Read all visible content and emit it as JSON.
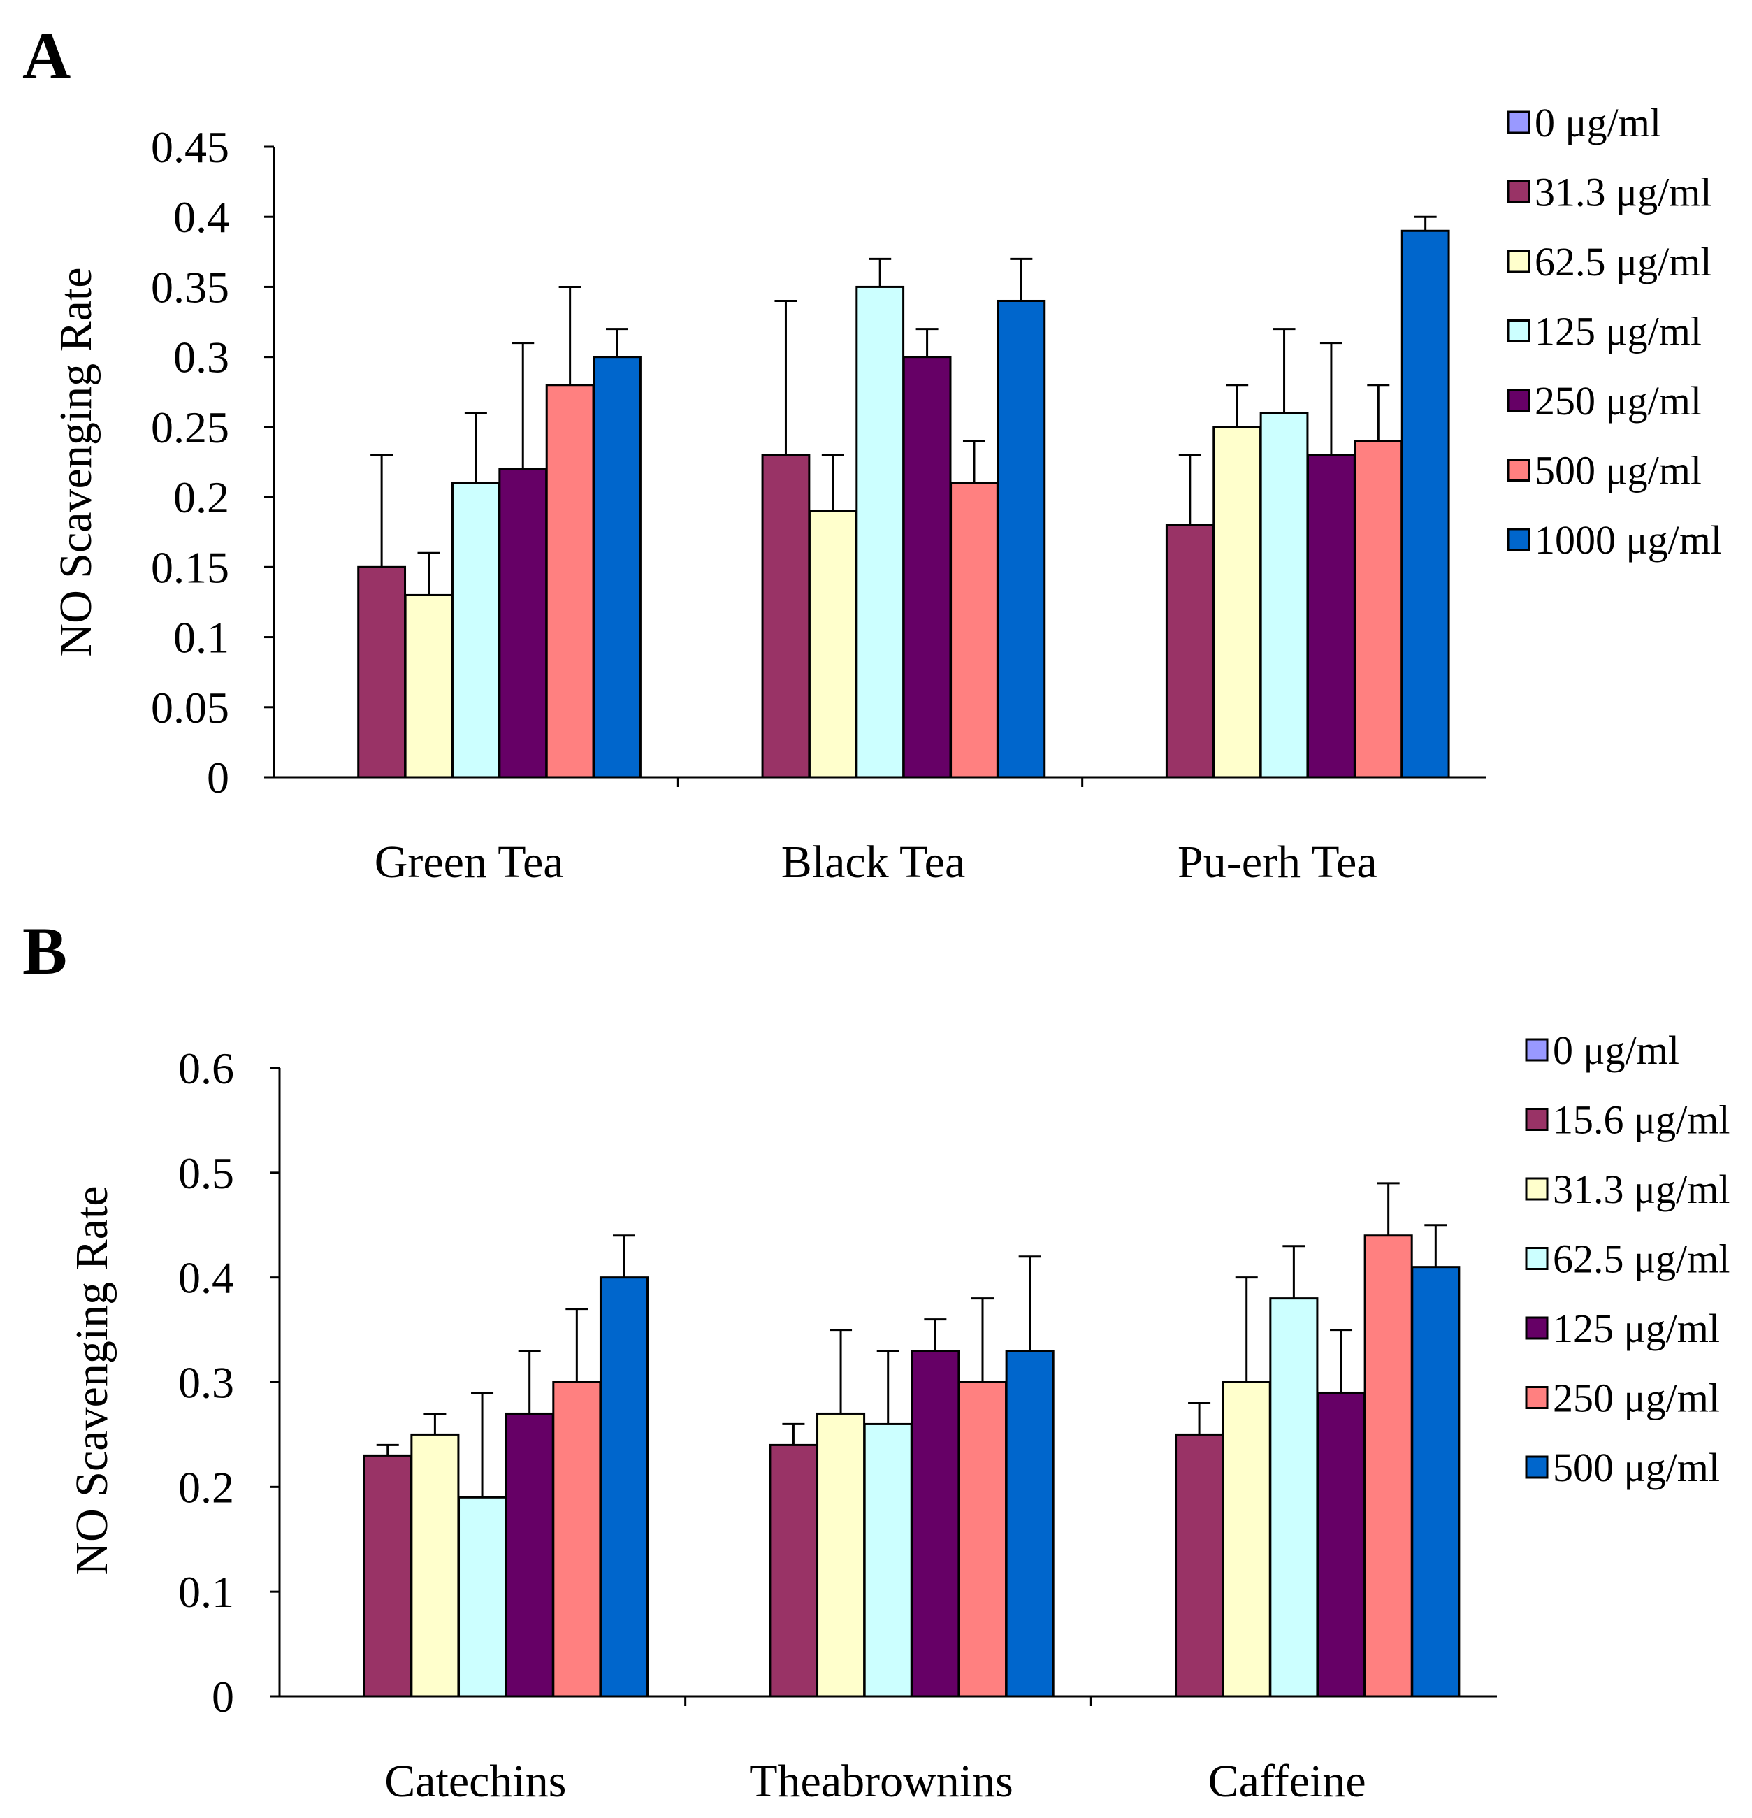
{
  "chart_data": [
    {
      "panel": "A",
      "type": "bar",
      "title": "",
      "xlabel": "",
      "ylabel": "NO Scavenging Rate",
      "ylim": [
        0,
        0.45
      ],
      "yticks": [
        "0",
        "0.05",
        "0.1",
        "0.15",
        "0.2",
        "0.25",
        "0.3",
        "0.35",
        "0.4",
        "0.45"
      ],
      "categories": [
        "Green Tea",
        "Black Tea",
        "Pu-erh Tea"
      ],
      "legend_position": "right",
      "series": [
        {
          "name": "0 μg/ml",
          "color": "#9999ff",
          "values": [
            0,
            0,
            0
          ],
          "errors": [
            0,
            0,
            0
          ]
        },
        {
          "name": "31.3 μg/ml",
          "color": "#993366",
          "values": [
            0.15,
            0.23,
            0.18
          ],
          "errors": [
            0.08,
            0.11,
            0.05
          ]
        },
        {
          "name": "62.5 μg/ml",
          "color": "#ffffcc",
          "values": [
            0.13,
            0.19,
            0.25
          ],
          "errors": [
            0.03,
            0.04,
            0.03
          ]
        },
        {
          "name": "125 μg/ml",
          "color": "#ccffff",
          "values": [
            0.21,
            0.35,
            0.26
          ],
          "errors": [
            0.05,
            0.02,
            0.06
          ]
        },
        {
          "name": "250 μg/ml",
          "color": "#660066",
          "values": [
            0.22,
            0.3,
            0.23
          ],
          "errors": [
            0.09,
            0.02,
            0.08
          ]
        },
        {
          "name": "500 μg/ml",
          "color": "#ff8080",
          "values": [
            0.28,
            0.21,
            0.24
          ],
          "errors": [
            0.07,
            0.03,
            0.04
          ]
        },
        {
          "name": "1000 μg/ml",
          "color": "#0066cc",
          "values": [
            0.3,
            0.34,
            0.39
          ],
          "errors": [
            0.02,
            0.03,
            0.01
          ]
        }
      ]
    },
    {
      "panel": "B",
      "type": "bar",
      "title": "",
      "xlabel": "",
      "ylabel": "NO Scavenging Rate",
      "ylim": [
        0,
        0.6
      ],
      "yticks": [
        "0",
        "0.1",
        "0.2",
        "0.3",
        "0.4",
        "0.5",
        "0.6"
      ],
      "categories": [
        "Catechins",
        "Theabrownins",
        "Caffeine"
      ],
      "legend_position": "right",
      "series": [
        {
          "name": "0 μg/ml",
          "color": "#9999ff",
          "values": [
            0,
            0,
            0
          ],
          "errors": [
            0,
            0,
            0
          ]
        },
        {
          "name": "15.6 μg/ml",
          "color": "#993366",
          "values": [
            0.23,
            0.24,
            0.25
          ],
          "errors": [
            0.01,
            0.02,
            0.03
          ]
        },
        {
          "name": "31.3 μg/ml",
          "color": "#ffffcc",
          "values": [
            0.25,
            0.27,
            0.3
          ],
          "errors": [
            0.02,
            0.08,
            0.1
          ]
        },
        {
          "name": "62.5 μg/ml",
          "color": "#ccffff",
          "values": [
            0.19,
            0.26,
            0.38
          ],
          "errors": [
            0.1,
            0.07,
            0.05
          ]
        },
        {
          "name": "125 μg/ml",
          "color": "#660066",
          "values": [
            0.27,
            0.33,
            0.29
          ],
          "errors": [
            0.06,
            0.03,
            0.06
          ]
        },
        {
          "name": "250 μg/ml",
          "color": "#ff8080",
          "values": [
            0.3,
            0.3,
            0.44
          ],
          "errors": [
            0.07,
            0.08,
            0.05
          ]
        },
        {
          "name": "500 μg/ml",
          "color": "#0066cc",
          "values": [
            0.4,
            0.33,
            0.41
          ],
          "errors": [
            0.04,
            0.09,
            0.04
          ]
        }
      ]
    }
  ]
}
